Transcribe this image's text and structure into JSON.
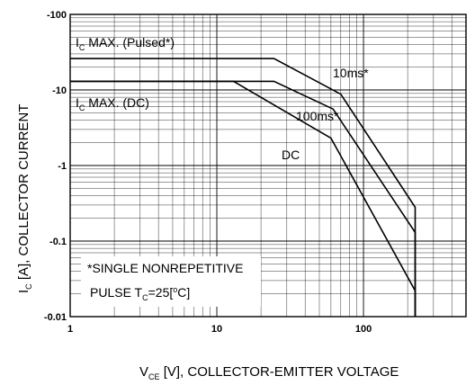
{
  "chart_data": {
    "type": "line",
    "x_scale": "log",
    "y_scale": "log",
    "xlim": [
      1,
      500
    ],
    "ylim": [
      0.01,
      100
    ],
    "x_ticks": [
      {
        "value": 1,
        "label": "1"
      },
      {
        "value": 10,
        "label": "10"
      },
      {
        "value": 100,
        "label": "100"
      }
    ],
    "y_ticks": [
      {
        "value": 100,
        "label": "-100"
      },
      {
        "value": 10,
        "label": "-10"
      },
      {
        "value": 1,
        "label": "-1"
      },
      {
        "value": 0.1,
        "label": "-0.1"
      },
      {
        "value": 0.01,
        "label": "-0.01"
      }
    ],
    "xlabel": {
      "main": "V",
      "sub": "CE",
      "rest": " [V], COLLECTOR-EMITTER VOLTAGE"
    },
    "ylabel": {
      "main": "I",
      "sub": "C",
      "rest": " [A], COLLECTOR CURRENT"
    },
    "grid": true,
    "series": [
      {
        "name": "10ms*",
        "points": [
          [
            1,
            26
          ],
          [
            24.5,
            26
          ],
          [
            70,
            8.8
          ],
          [
            225,
            0.28
          ],
          [
            225,
            0.01
          ]
        ]
      },
      {
        "name": "100ms*",
        "points": [
          [
            1,
            13
          ],
          [
            24.5,
            13
          ],
          [
            62,
            5.6
          ],
          [
            225,
            0.13
          ],
          [
            225,
            0.01
          ]
        ]
      },
      {
        "name": "DC",
        "points": [
          [
            1,
            13
          ],
          [
            13,
            13
          ],
          [
            60,
            2.3
          ],
          [
            225,
            0.022
          ],
          [
            225,
            0.01
          ]
        ]
      }
    ],
    "annotations": {
      "ic_pulsed": {
        "main": "I",
        "sub": "C",
        "rest": " MAX. (Pulsed*)"
      },
      "ic_dc": {
        "main": "I",
        "sub": "C",
        "rest": " MAX. (DC)"
      },
      "label_10ms": "10ms*",
      "label_100ms": "100ms*",
      "label_dc": "DC",
      "note_line1": "*SINGLE NONREPETITIVE",
      "note_line2": {
        "a": "PULSE T",
        "sub": "C",
        "b": "=25[",
        "sup": "o",
        "c": "C]"
      }
    }
  }
}
